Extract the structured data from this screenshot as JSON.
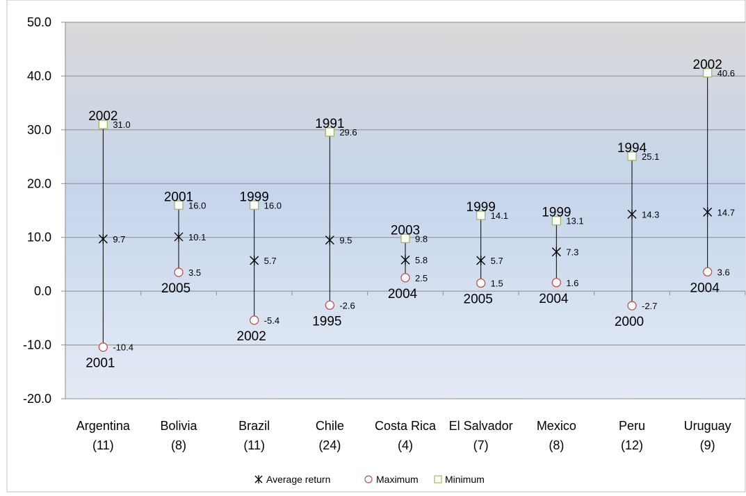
{
  "chart_data": {
    "type": "scatter",
    "title": "",
    "xlabel": "",
    "ylabel": "",
    "ylim": [
      -20,
      50
    ],
    "yticks": [
      "-20.0",
      "-10.0",
      "0.0",
      "10.0",
      "20.0",
      "30.0",
      "40.0",
      "50.0"
    ],
    "grid": true,
    "legend_position": "bottom",
    "categories": [
      {
        "name": "Argentina",
        "count": "(11)"
      },
      {
        "name": "Bolivia",
        "count": "(8)"
      },
      {
        "name": "Brazil",
        "count": "(11)"
      },
      {
        "name": "Chile",
        "count": "(24)"
      },
      {
        "name": "Costa Rica",
        "count": "(4)"
      },
      {
        "name": "El Salvador",
        "count": "(7)"
      },
      {
        "name": "Mexico",
        "count": "(8)"
      },
      {
        "name": "Peru",
        "count": "(12)"
      },
      {
        "name": "Uruguay",
        "count": "(9)"
      }
    ],
    "series": [
      {
        "name": "Average return",
        "marker": "x-star",
        "color": "#000000",
        "values": [
          9.7,
          10.1,
          5.7,
          9.5,
          5.8,
          5.7,
          7.3,
          14.3,
          14.7
        ],
        "labels": [
          "9.7",
          "10.1",
          "5.7",
          "9.5",
          "5.8",
          "5.7",
          "7.3",
          "14.3",
          "14.7"
        ]
      },
      {
        "name": "Maximum",
        "marker": "circle",
        "color": "#c0504d",
        "values": [
          -10.4,
          3.5,
          -5.4,
          -2.6,
          2.5,
          1.5,
          1.6,
          -2.7,
          3.6
        ],
        "labels": [
          "-10.4",
          "3.5",
          "-5.4",
          "-2.6",
          "2.5",
          "1.5",
          "1.6",
          "-2.7",
          "3.6"
        ],
        "years": [
          "2001",
          "2005",
          "2002",
          "1995",
          "2004",
          "2005",
          "2004",
          "2000",
          "2004"
        ]
      },
      {
        "name": "Minimum",
        "marker": "square",
        "color": "#9bbb59",
        "values": [
          31.0,
          16.0,
          16.0,
          29.6,
          9.8,
          14.1,
          13.1,
          25.1,
          40.6
        ],
        "labels": [
          "31.0",
          "16.0",
          "16.0",
          "29.6",
          "9.8",
          "14.1",
          "13.1",
          "25.1",
          "40.6"
        ],
        "years": [
          "2002",
          "2001",
          "1999",
          "1991",
          "2003",
          "1999",
          "1999",
          "1994",
          "2002"
        ]
      }
    ],
    "colors": {
      "background_top": "#d9d9d9",
      "background_bottom": "#dce6f2",
      "background_mid": "#c6d5ec",
      "gridline": "#8c8c8c",
      "whisker": "#000000"
    }
  }
}
